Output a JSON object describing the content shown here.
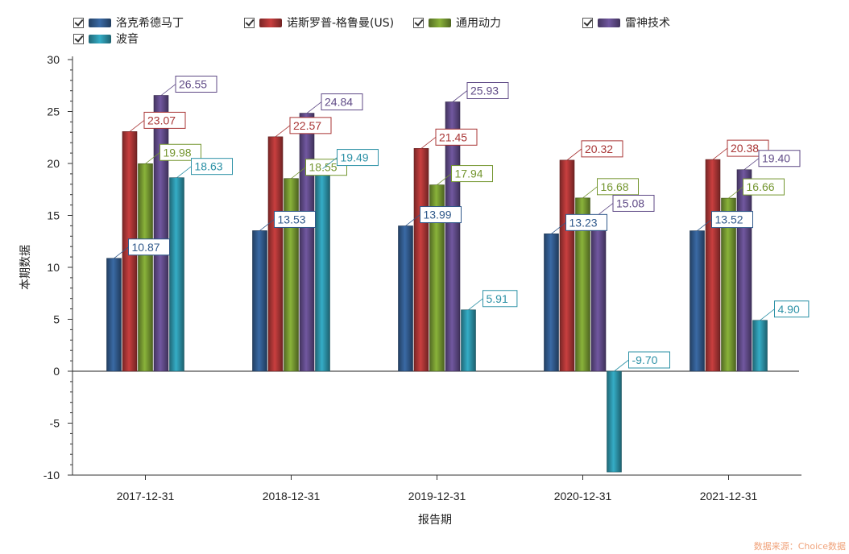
{
  "chart_data": {
    "type": "bar",
    "xlabel": "报告期",
    "ylabel": "本期数据",
    "ylim": [
      -10,
      30
    ],
    "yticks": [
      -10,
      -5,
      0,
      5,
      10,
      15,
      20,
      25,
      30
    ],
    "categories": [
      "2017-12-31",
      "2018-12-31",
      "2019-12-31",
      "2020-12-31",
      "2021-12-31"
    ],
    "series": [
      {
        "name": "洛克希德马丁",
        "color": "#2e5584",
        "values": [
          10.87,
          13.53,
          13.99,
          13.23,
          13.52
        ],
        "labels": [
          "10.87",
          "13.53",
          "13.99",
          "13.23",
          "13.52"
        ]
      },
      {
        "name": "诺斯罗普-格鲁曼(US)",
        "color": "#a13232",
        "values": [
          23.07,
          22.57,
          21.45,
          20.32,
          20.38
        ],
        "labels": [
          "23.07",
          "22.57",
          "21.45",
          "20.32",
          "20.38"
        ]
      },
      {
        "name": "通用动力",
        "color": "#6e8f2e",
        "values": [
          19.98,
          18.55,
          17.94,
          16.68,
          16.66
        ],
        "labels": [
          "19.98",
          "18.55",
          "17.94",
          "16.68",
          "16.66"
        ]
      },
      {
        "name": "雷神技术",
        "color": "#5a4680",
        "values": [
          26.55,
          24.84,
          25.93,
          15.08,
          19.4
        ],
        "labels": [
          "26.55",
          "24.84",
          "25.93",
          "15.08",
          "19.40"
        ]
      },
      {
        "name": "波音",
        "color": "#2a8a9e",
        "values": [
          18.63,
          19.49,
          5.91,
          -9.7,
          4.9
        ],
        "labels": [
          "18.63",
          "19.49",
          "5.91",
          "-9.70",
          "4.90"
        ]
      }
    ]
  },
  "footer": "数据来源：Choice数据"
}
